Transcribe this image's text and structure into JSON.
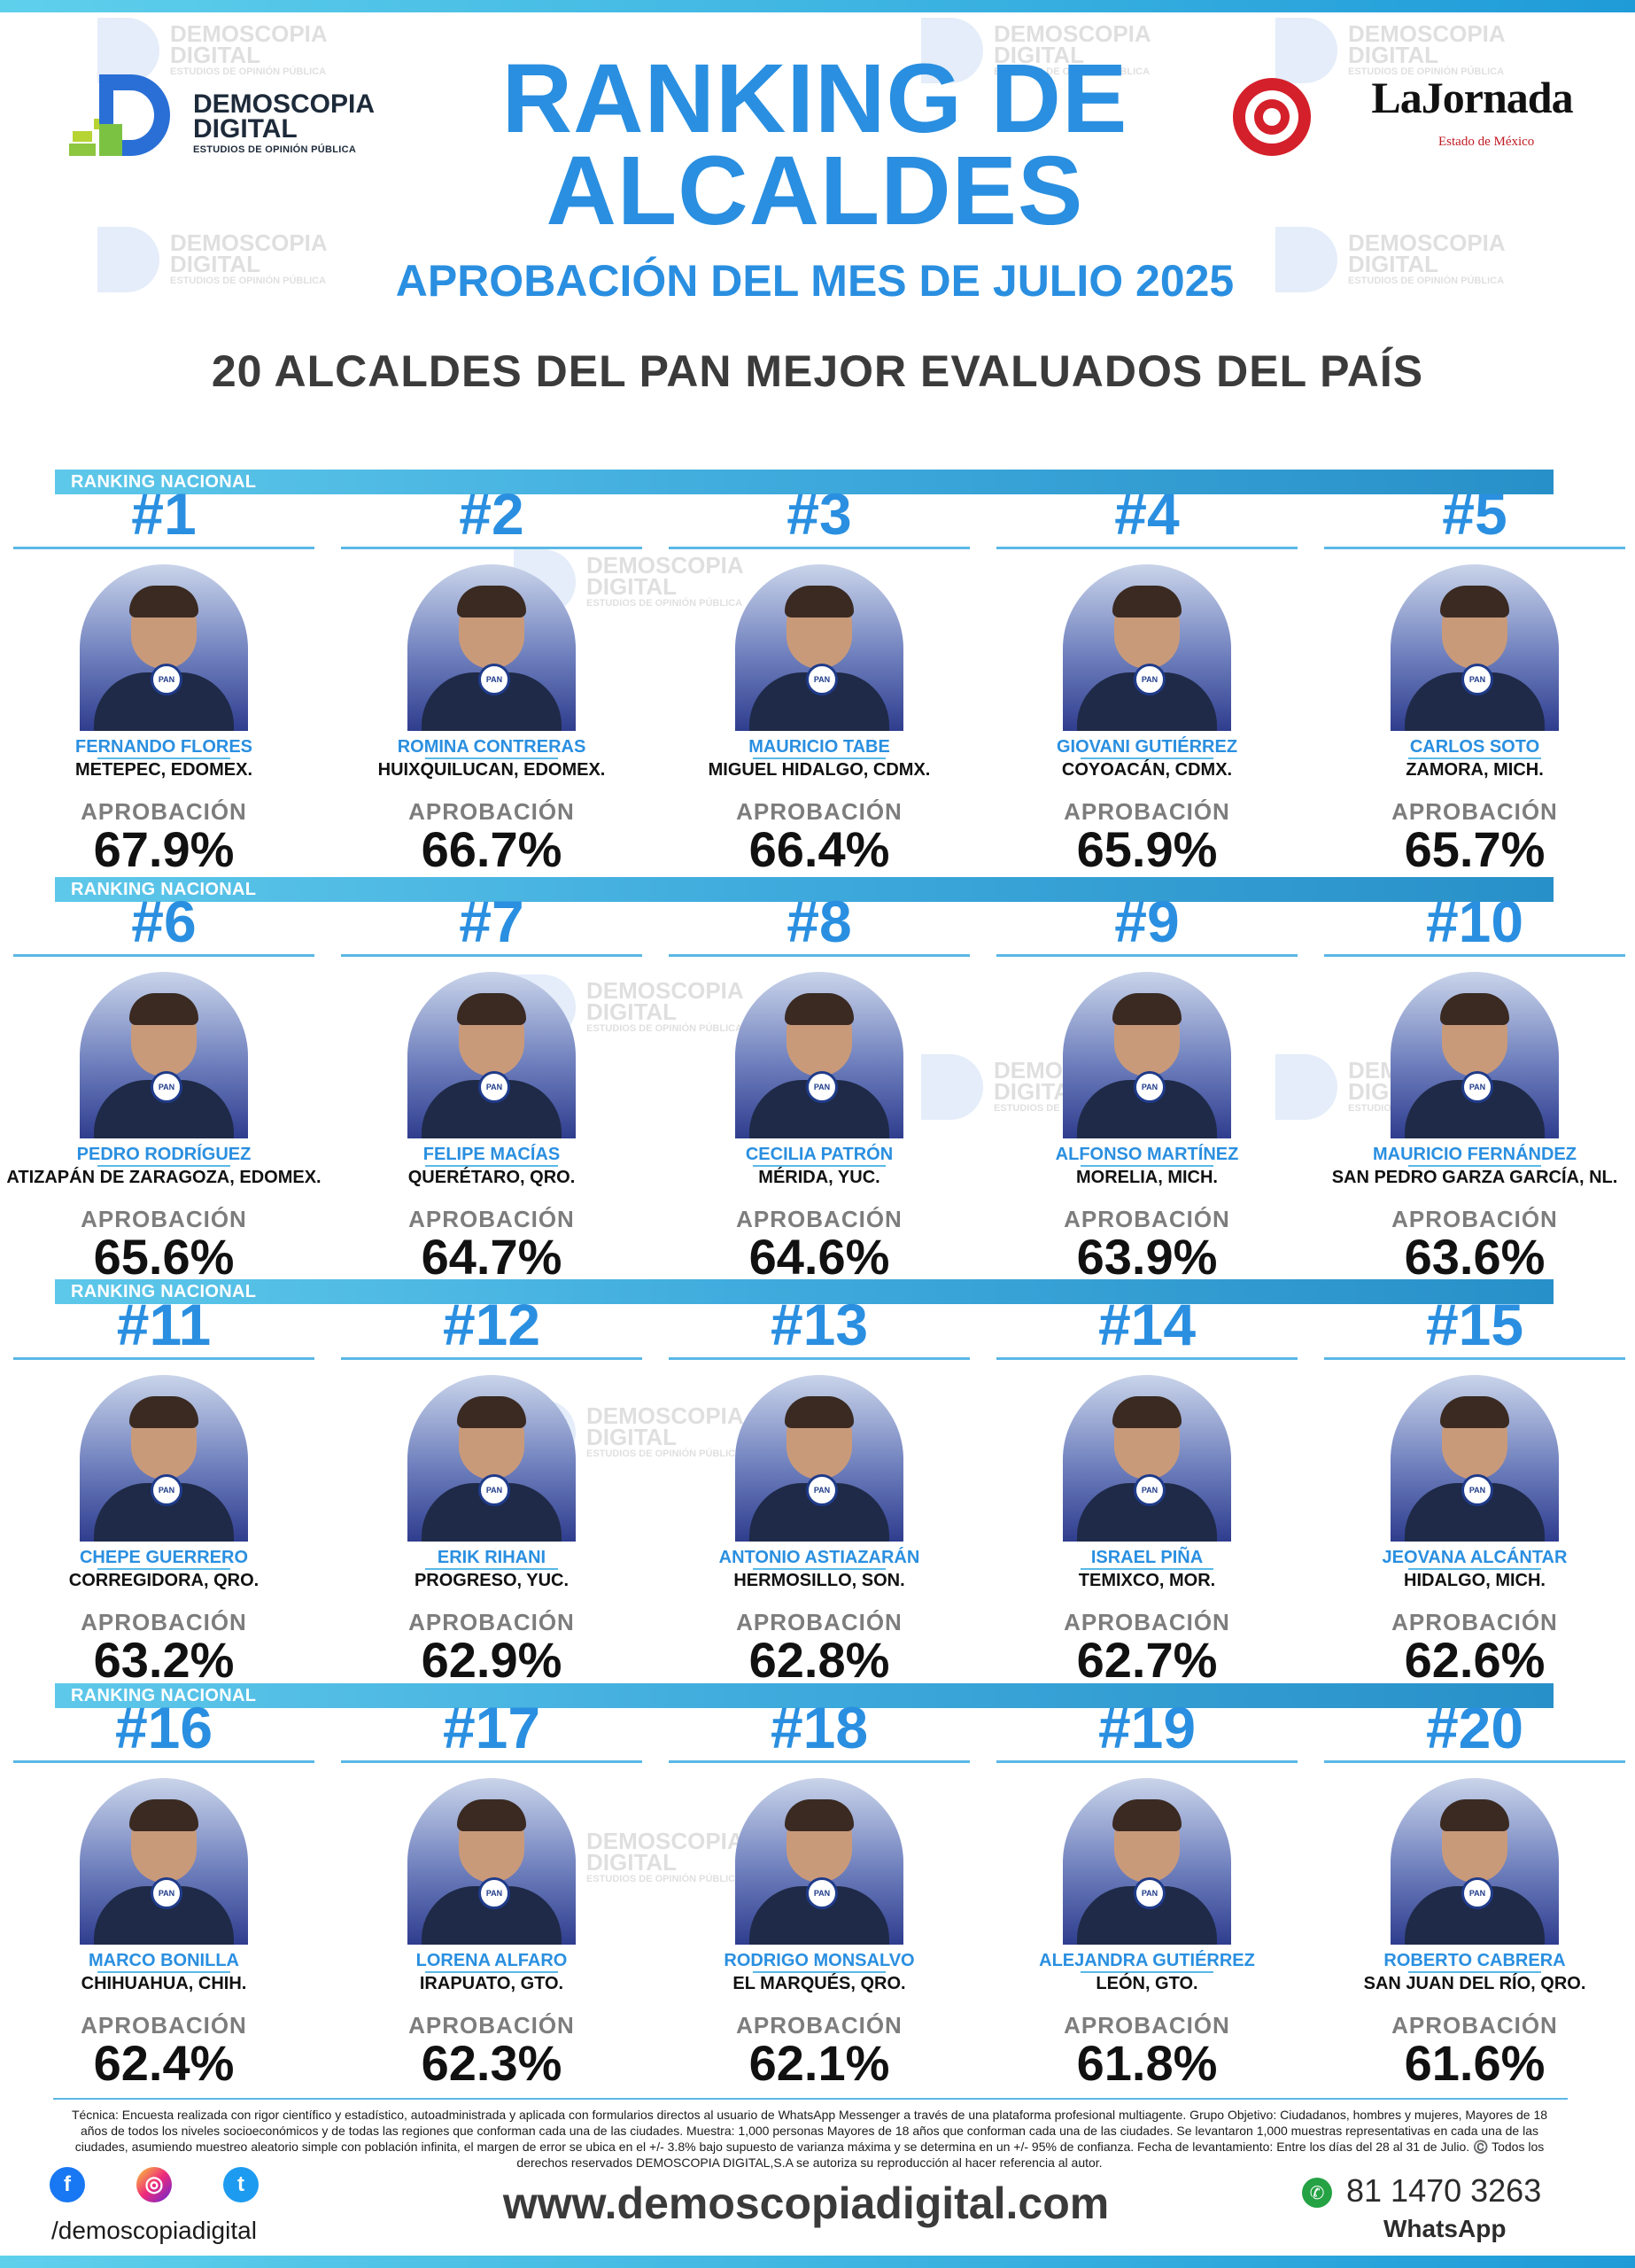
{
  "brand": {
    "demoscopia_line1": "DEMOSCOPIA",
    "demoscopia_line2": "DIGITAL",
    "demoscopia_tagline": "ESTUDIOS DE OPINIÓN PÚBLICA",
    "jornada_name": "LaJornada",
    "jornada_sub": "Estado de México"
  },
  "header": {
    "title_line1": "RANKING DE",
    "title_line2": "ALCALDES",
    "subtitle": "APROBACIÓN DEL MES DE JULIO 2025",
    "headline": "20 ALCALDES DEL PAN MEJOR EVALUADOS DEL PAÍS"
  },
  "section_label": "RANKING NACIONAL",
  "approval_label": "APROBACIÓN",
  "badge_text": "PAN",
  "mayors": [
    {
      "rank": "#1",
      "name": "FERNANDO FLORES",
      "place": "METEPEC, EDOMEX.",
      "approval": "67.9%"
    },
    {
      "rank": "#2",
      "name": "ROMINA CONTRERAS",
      "place": "HUIXQUILUCAN, EDOMEX.",
      "approval": "66.7%"
    },
    {
      "rank": "#3",
      "name": "MAURICIO TABE",
      "place": "MIGUEL HIDALGO, CDMX.",
      "approval": "66.4%"
    },
    {
      "rank": "#4",
      "name": "GIOVANI GUTIÉRREZ",
      "place": "COYOACÁN, CDMX.",
      "approval": "65.9%"
    },
    {
      "rank": "#5",
      "name": "CARLOS SOTO",
      "place": "ZAMORA, MICH.",
      "approval": "65.7%"
    },
    {
      "rank": "#6",
      "name": "PEDRO RODRÍGUEZ",
      "place": "ATIZAPÁN DE ZARAGOZA, EDOMEX.",
      "approval": "65.6%"
    },
    {
      "rank": "#7",
      "name": "FELIPE MACÍAS",
      "place": "QUERÉTARO, QRO.",
      "approval": "64.7%"
    },
    {
      "rank": "#8",
      "name": "CECILIA PATRÓN",
      "place": "MÉRIDA, YUC.",
      "approval": "64.6%"
    },
    {
      "rank": "#9",
      "name": "ALFONSO MARTÍNEZ",
      "place": "MORELIA, MICH.",
      "approval": "63.9%"
    },
    {
      "rank": "#10",
      "name": "MAURICIO FERNÁNDEZ",
      "place": "SAN PEDRO GARZA GARCÍA, NL.",
      "approval": "63.6%"
    },
    {
      "rank": "#11",
      "name": "CHEPE GUERRERO",
      "place": "CORREGIDORA, QRO.",
      "approval": "63.2%"
    },
    {
      "rank": "#12",
      "name": "ERIK RIHANI",
      "place": "PROGRESO, YUC.",
      "approval": "62.9%"
    },
    {
      "rank": "#13",
      "name": "ANTONIO ASTIAZARÁN",
      "place": "HERMOSILLO, SON.",
      "approval": "62.8%"
    },
    {
      "rank": "#14",
      "name": "ISRAEL PIÑA",
      "place": "TEMIXCO, MOR.",
      "approval": "62.7%"
    },
    {
      "rank": "#15",
      "name": "JEOVANA ALCÁNTAR",
      "place": "HIDALGO, MICH.",
      "approval": "62.6%"
    },
    {
      "rank": "#16",
      "name": "MARCO BONILLA",
      "place": "CHIHUAHUA, CHIH.",
      "approval": "62.4%"
    },
    {
      "rank": "#17",
      "name": "LORENA ALFARO",
      "place": "IRAPUATO, GTO.",
      "approval": "62.3%"
    },
    {
      "rank": "#18",
      "name": "RODRIGO MONSALVO",
      "place": "EL MARQUÉS, QRO.",
      "approval": "62.1%"
    },
    {
      "rank": "#19",
      "name": "ALEJANDRA GUTIÉRREZ",
      "place": "LEÓN, GTO.",
      "approval": "61.8%"
    },
    {
      "rank": "#20",
      "name": "ROBERTO CABRERA",
      "place": "SAN JUAN DEL RÍO, QRO.",
      "approval": "61.6%"
    }
  ],
  "footer": {
    "note": "Técnica: Encuesta realizada con rigor científico y estadístico, autoadministrada y aplicada con formularios directos al usuario de WhatsApp Messenger a través de una plataforma profesional multiagente. Grupo Objetivo: Ciudadanos, hombres y mujeres, Mayores de 18 años de todos los niveles socioeconómicos y de todas las regiones que conforman cada una de las ciudades. Muestra: 1,000 personas Mayores de 18 años que conforman cada una de las ciudades. Se levantaron 1,000 muestras representativas en cada una de las ciudades, asumiendo muestreo aleatorio simple con población infinita, el margen de error se ubica en el +/- 3.8% bajo supuesto de varianza máxima y se determina en un +/- 95% de confianza. Fecha de levantamiento: Entre los días del 28 al 31 de Julio. ©️ Todos los derechos reservados DEMOSCOPIA DIGITAL,S.A se autoriza su reproducción al hacer referencia al autor.",
    "handle": "/demoscopiadigital",
    "website": "www.demoscopiadigital.com",
    "phone": "81 1470 3263",
    "whatsapp_label": "WhatsApp"
  },
  "colors": {
    "accent_blue": "#2a8fe0",
    "bar_blue": "#3da9dc",
    "pan_blue": "#1f3b8a"
  }
}
